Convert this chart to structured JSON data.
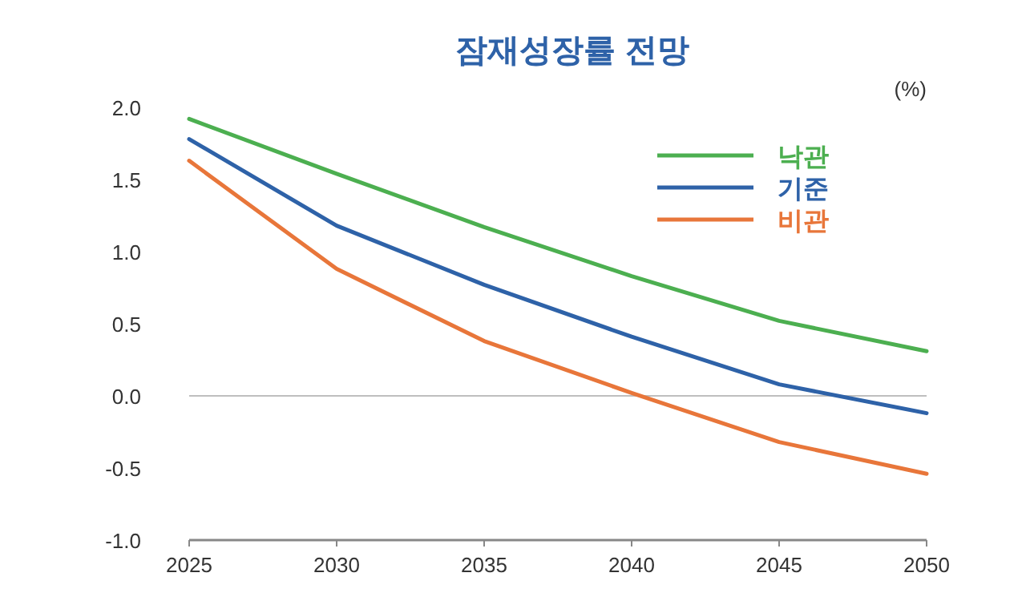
{
  "chart_data": {
    "type": "line",
    "title": "잠재성장률 전망",
    "ylabel": "(%)",
    "x": [
      2025,
      2030,
      2035,
      2040,
      2045,
      2050
    ],
    "series": [
      {
        "name": "낙관",
        "color": "#4caf50",
        "values": [
          1.92,
          1.54,
          1.17,
          0.83,
          0.52,
          0.31
        ]
      },
      {
        "name": "기준",
        "color": "#2e62a8",
        "values": [
          1.78,
          1.18,
          0.77,
          0.41,
          0.08,
          -0.12
        ]
      },
      {
        "name": "비관",
        "color": "#e8763a",
        "values": [
          1.63,
          0.88,
          0.38,
          0.02,
          -0.32,
          -0.54
        ]
      }
    ],
    "xlim": [
      2025,
      2050
    ],
    "xticks": [
      2025,
      2030,
      2035,
      2040,
      2045,
      2050
    ],
    "ylim": [
      -1,
      2
    ],
    "yticks": [
      {
        "value": -1,
        "label": "-1.0"
      },
      {
        "value": -0.5,
        "label": "-0.5"
      },
      {
        "value": 0,
        "label": "0.0"
      },
      {
        "value": 0.5,
        "label": "0.5"
      },
      {
        "value": 1,
        "label": "1.0"
      },
      {
        "value": 1.5,
        "label": "1.5"
      },
      {
        "value": 2,
        "label": "2.0"
      }
    ],
    "ref_lines": [
      {
        "axis": "y",
        "value": 0,
        "color": "#bfbfbf"
      }
    ],
    "legend": "top right",
    "marker": "none",
    "line_style": "solid",
    "grid": false
  }
}
